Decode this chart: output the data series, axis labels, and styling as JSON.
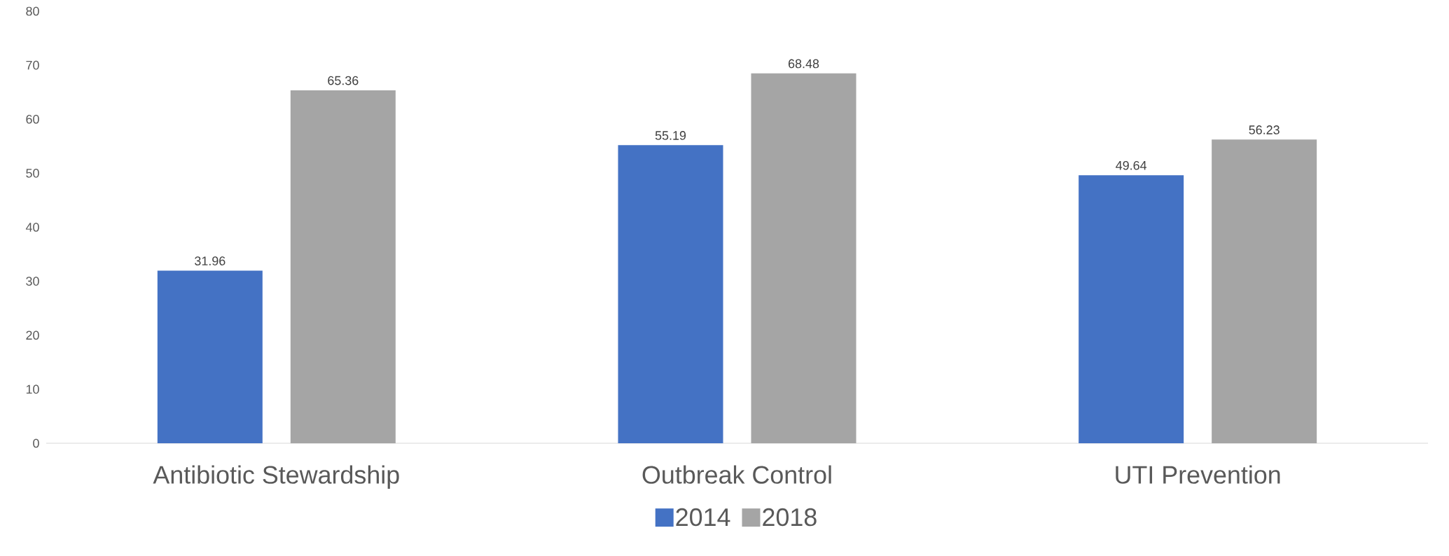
{
  "chart_data": {
    "type": "bar",
    "categories": [
      "Antibiotic Stewardship",
      "Outbreak Control",
      "UTI Prevention"
    ],
    "series": [
      {
        "name": "2014",
        "color": "#4472c4",
        "values": [
          31.96,
          55.19,
          49.64
        ]
      },
      {
        "name": "2018",
        "color": "#a5a5a5",
        "values": [
          65.36,
          68.48,
          56.23
        ]
      }
    ],
    "ylim": [
      0,
      80
    ],
    "yticks": [
      0,
      10,
      20,
      30,
      40,
      50,
      60,
      70,
      80
    ],
    "data_labels": true,
    "legend": "bottom"
  }
}
